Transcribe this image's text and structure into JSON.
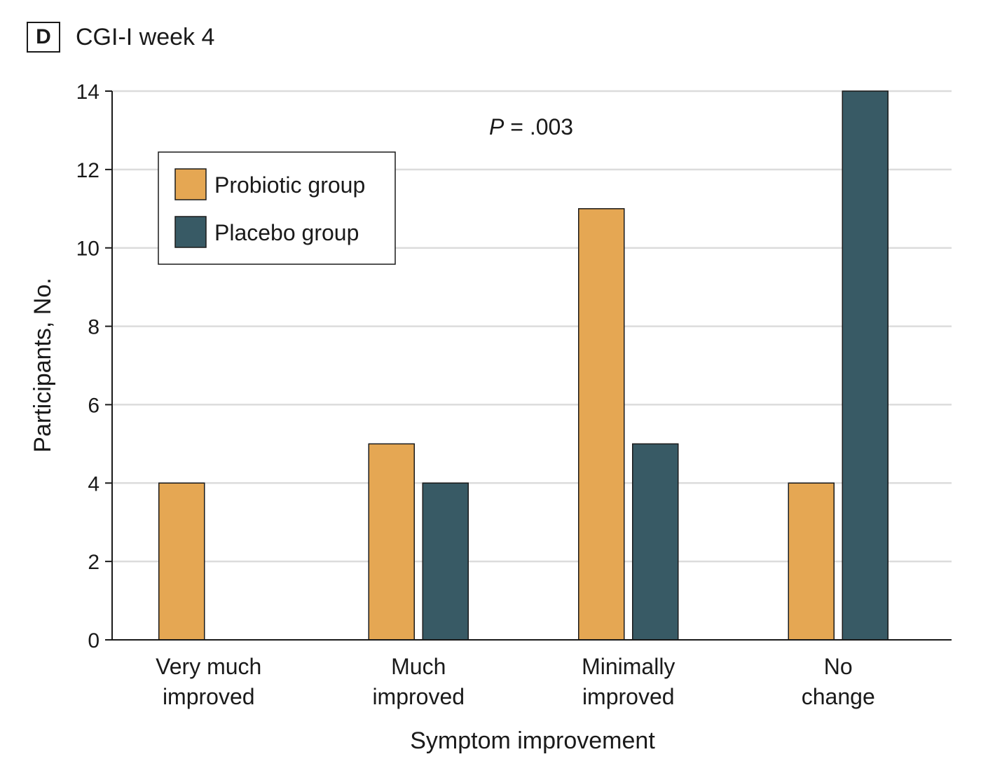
{
  "panel": {
    "letter": "D",
    "title": "CGI-I week 4"
  },
  "chart_data": {
    "type": "bar",
    "categories": [
      [
        "Very much",
        "improved"
      ],
      [
        "Much",
        "improved"
      ],
      [
        "Minimally",
        "improved"
      ],
      [
        "No",
        "change"
      ]
    ],
    "series": [
      {
        "name": "Probiotic group",
        "color": "#E5A753",
        "values": [
          4,
          5,
          11,
          4
        ]
      },
      {
        "name": "Placebo group",
        "color": "#385A65",
        "values": [
          0,
          4,
          5,
          14
        ]
      }
    ],
    "xlabel": "Symptom improvement",
    "ylabel": "Participants, No.",
    "ylim": [
      0,
      14
    ],
    "yticks": [
      0,
      2,
      4,
      6,
      8,
      10,
      12,
      14
    ],
    "grid": true,
    "legend_position": "top-left",
    "annotation": {
      "italic": "P",
      "text": " = .003"
    }
  }
}
